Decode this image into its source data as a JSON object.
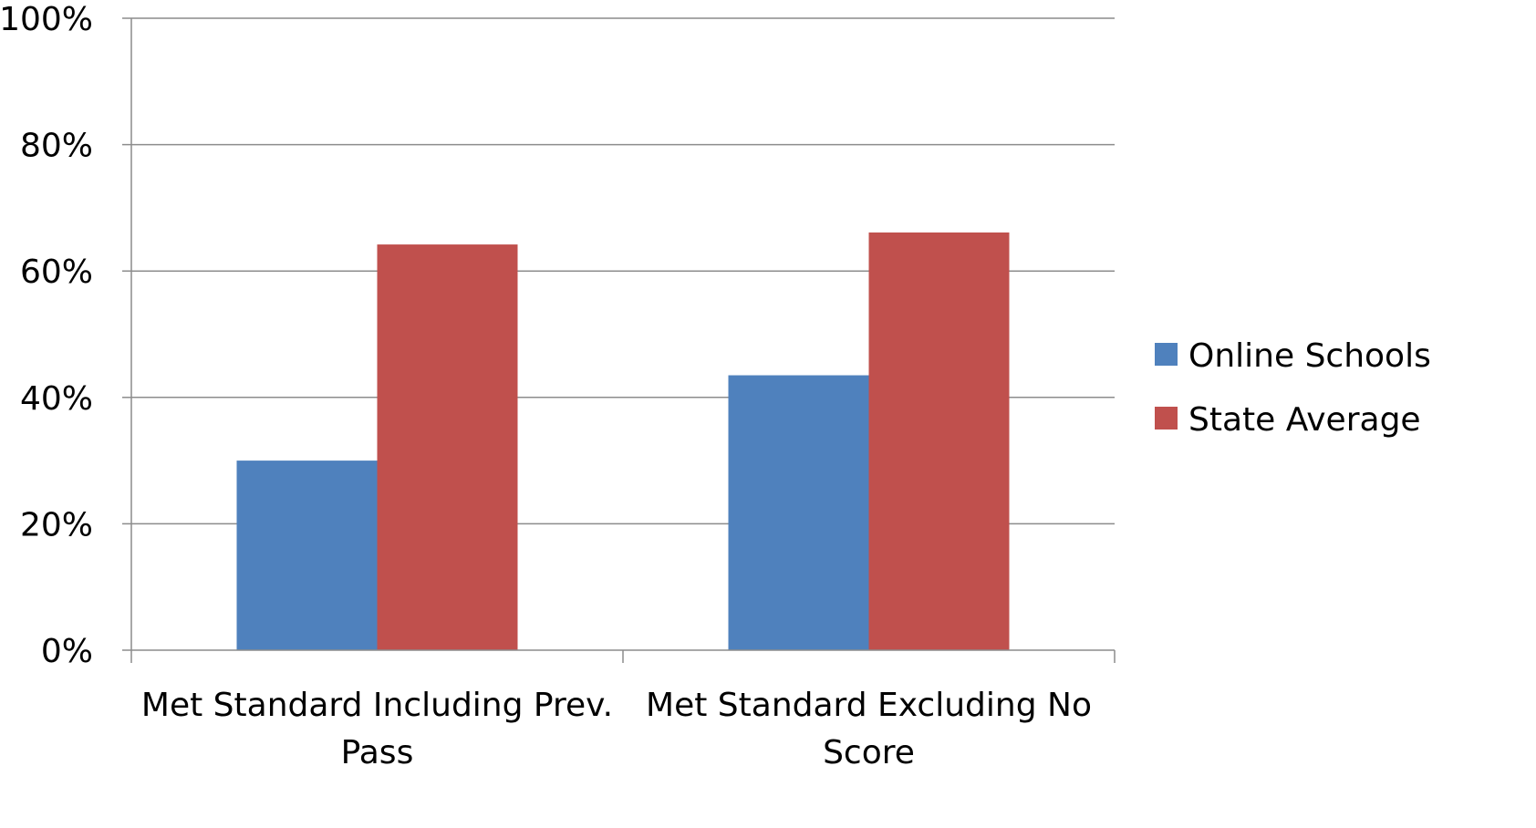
{
  "chart_data": {
    "type": "bar",
    "title": "",
    "xlabel": "",
    "ylabel": "",
    "categories": [
      [
        "Met Standard Including Prev.",
        "Pass"
      ],
      [
        "Met Standard Excluding No",
        "Score"
      ]
    ],
    "series": [
      {
        "name": "Online Schools",
        "values": [
          30,
          43.5
        ],
        "color": "#4f81bd"
      },
      {
        "name": "State Average",
        "values": [
          64.2,
          66.1
        ],
        "color": "#c0504d"
      }
    ],
    "ylim": [
      0,
      100
    ],
    "yticks": [
      0,
      20,
      40,
      60,
      80,
      100
    ],
    "ytick_labels": [
      "0%",
      "20%",
      "40%",
      "60%",
      "80%",
      "100%"
    ],
    "grid": "horizontal",
    "legend_position": "right"
  }
}
